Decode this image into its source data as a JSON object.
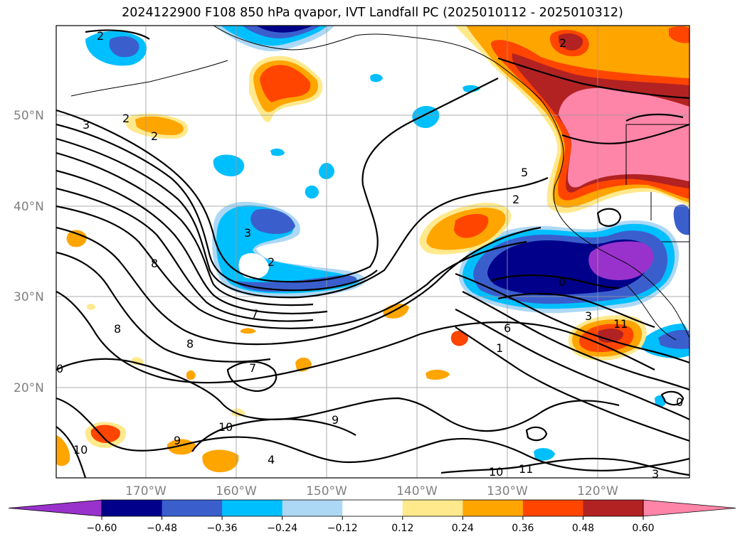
{
  "title": "2024122900 F108 850 hPa qvapor, IVT Landfall PC (2025010112 - 2025010312)",
  "lat_labels": [
    "50°N",
    "40°N",
    "30°N",
    "20°N"
  ],
  "lon_labels": [
    "170°W",
    "160°W",
    "150°W",
    "140°W",
    "130°W",
    "120°W"
  ],
  "colorbar": {
    "ticks": [
      "−0.60",
      "−0.48",
      "−0.36",
      "−0.24",
      "−0.12",
      "0.12",
      "0.24",
      "0.36",
      "0.48",
      "0.60"
    ],
    "colors": [
      "#9932CC",
      "#00008B",
      "#3A5FCD",
      "#00BFFF",
      "#ADD8F5",
      "#FFFFFF",
      "#FFE98C",
      "#FFA500",
      "#FF4500",
      "#B22222",
      "#FF85A8"
    ]
  },
  "contour_labels": [
    "2",
    "3",
    "2",
    "2",
    "3",
    "2",
    "8",
    "7",
    "8",
    "8",
    "0",
    "7",
    "9",
    "10",
    "9",
    "10",
    "4",
    "5",
    "2",
    "0",
    "3",
    "6",
    "1",
    "11",
    "10",
    "11",
    "3",
    "0",
    "2"
  ],
  "map": {
    "projection": "PlateCarree",
    "lon_range": [
      "180°W",
      "110°W"
    ],
    "lat_range": [
      "10°N",
      "60°N"
    ],
    "fill_variable": "850 hPa qvapor PC",
    "contour_variable": "IVT",
    "gridlines": true,
    "coastlines": true
  }
}
